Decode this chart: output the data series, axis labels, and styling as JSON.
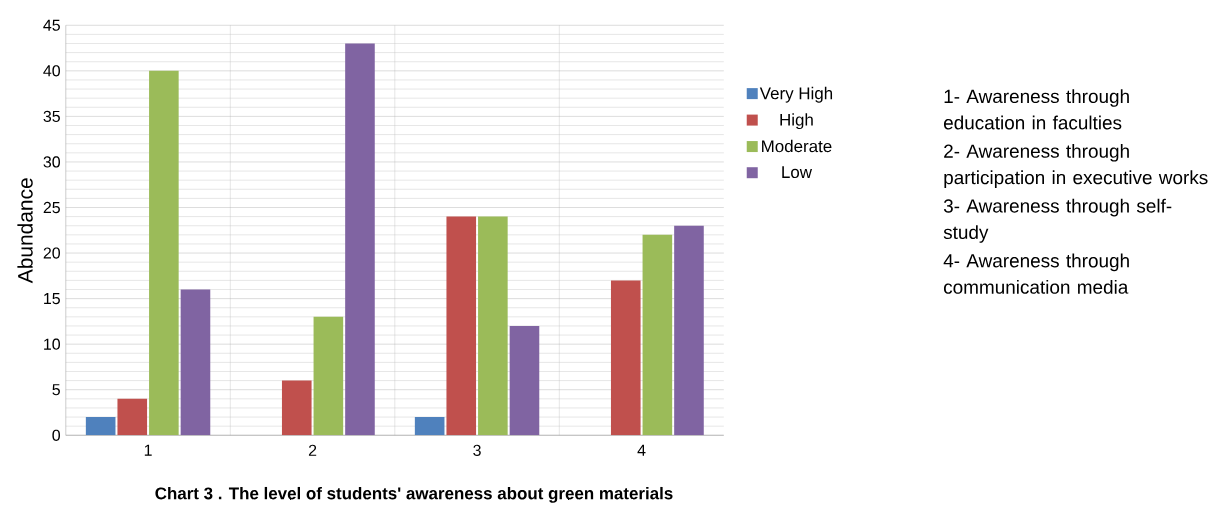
{
  "chart_data": {
    "type": "bar",
    "title": "Chart 3 . The level of  students' awareness about green materials",
    "ylabel": "Abundance",
    "categories": [
      "1",
      "2",
      "3",
      "4"
    ],
    "series": [
      {
        "name": "Very High",
        "color": "#4f81bd",
        "values": [
          2,
          0,
          2,
          0
        ]
      },
      {
        "name": "High",
        "color": "#c0504d",
        "values": [
          4,
          6,
          24,
          17
        ]
      },
      {
        "name": "Moderate",
        "color": "#9bbb59",
        "values": [
          40,
          13,
          24,
          22
        ]
      },
      {
        "name": "Low",
        "color": "#8064a2",
        "values": [
          16,
          43,
          12,
          23
        ]
      }
    ],
    "ylim": [
      0,
      45
    ],
    "yticks": [
      0,
      5,
      10,
      15,
      20,
      25,
      30,
      35,
      40,
      45
    ],
    "grid": "y",
    "legend": "right",
    "annotations": [
      "1- Awareness through education in  faculties",
      "2- Awareness through participation in executive works",
      "3- Awareness through self-study",
      "4- Awareness through communication media"
    ]
  }
}
